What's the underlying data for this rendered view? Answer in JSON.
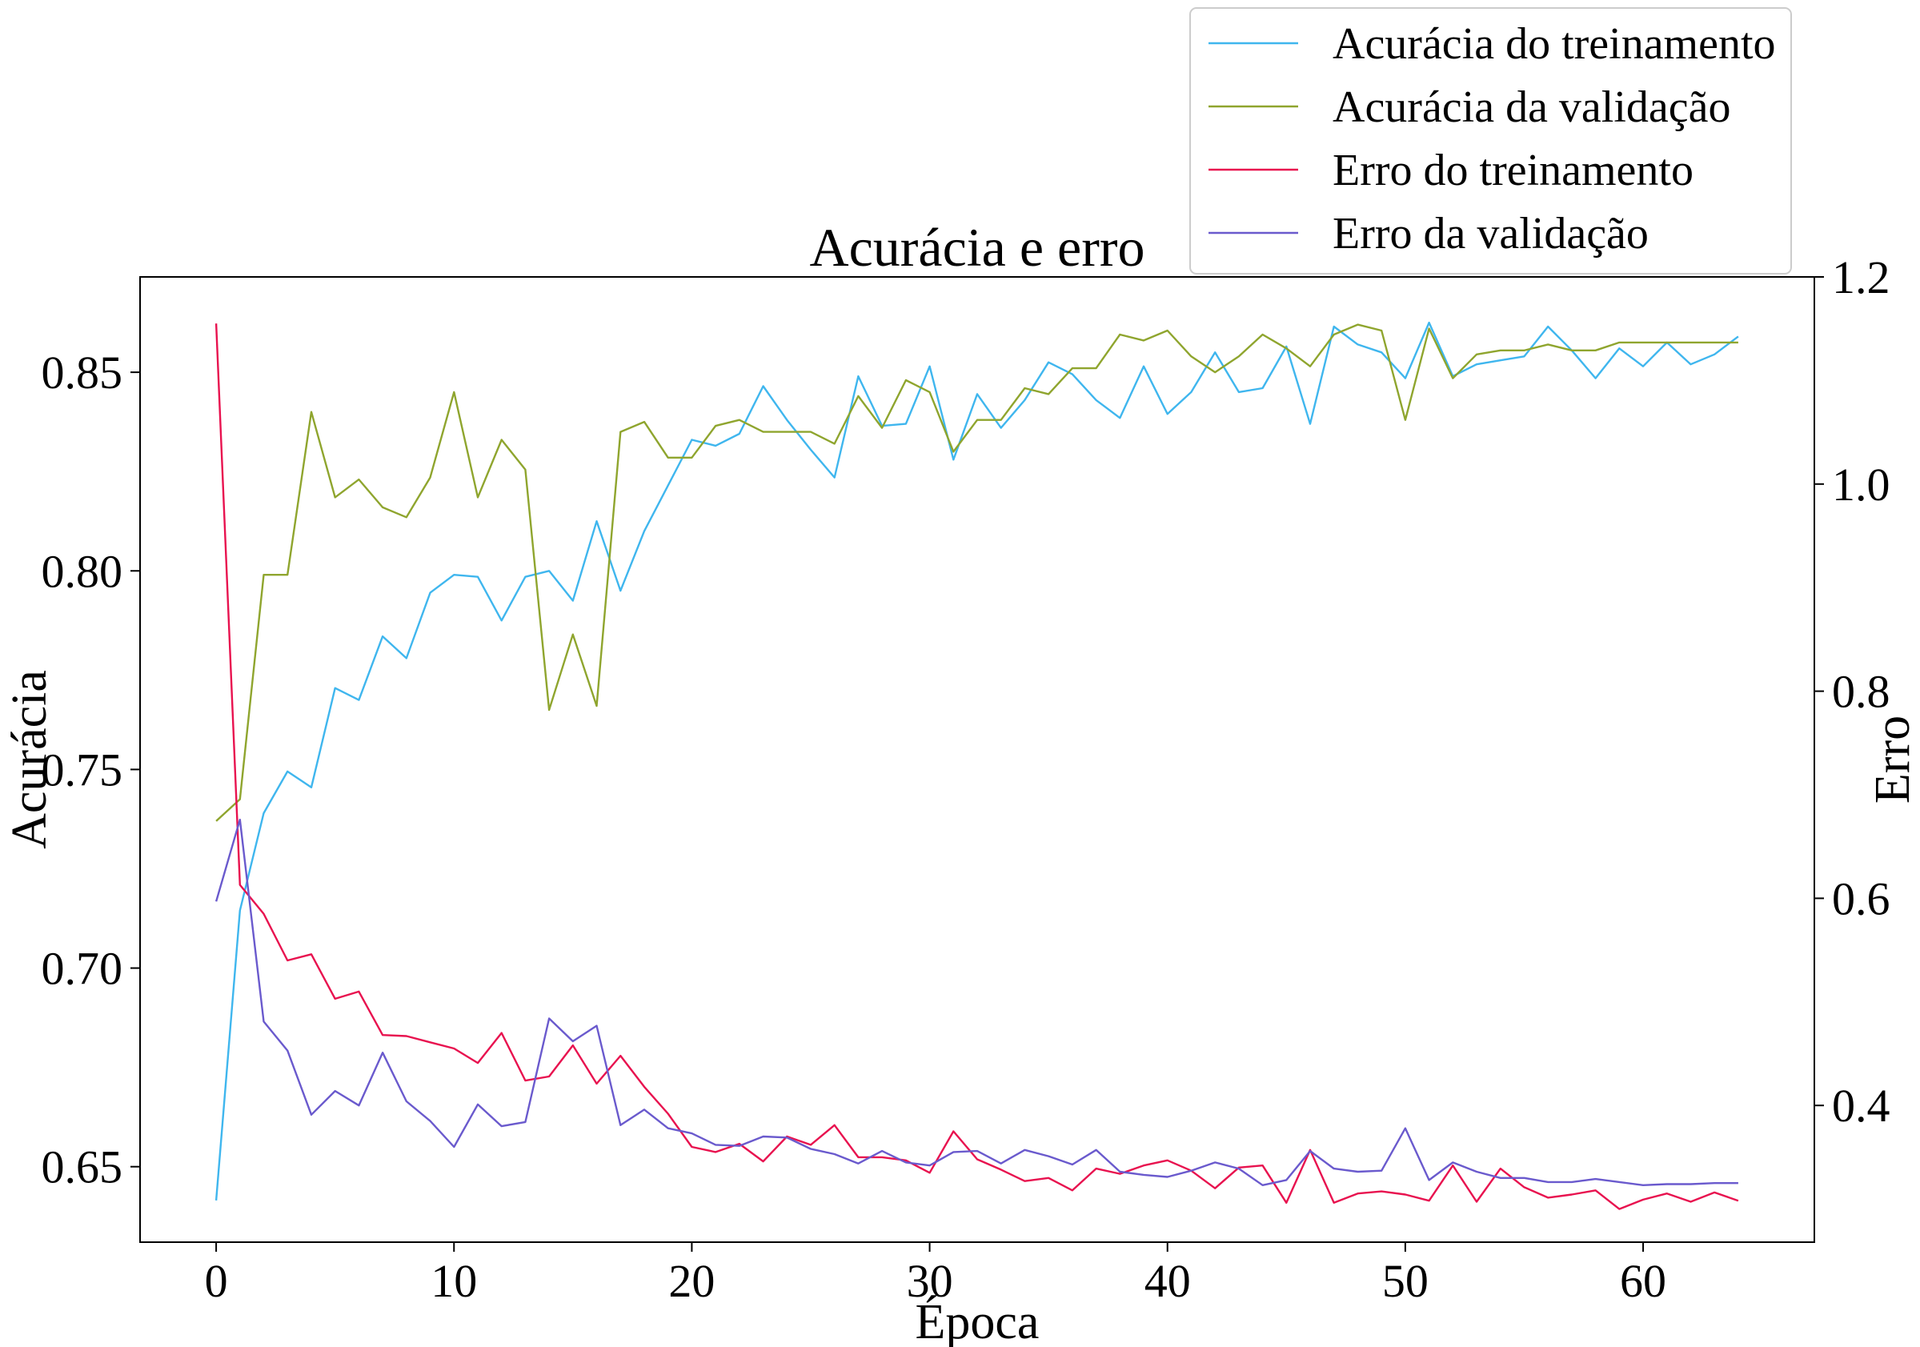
{
  "chart_data": {
    "type": "line",
    "title": "Acurácia e erro",
    "xlabel": "Época",
    "ylabel_left": "Acurácia",
    "ylabel_right": "Erro",
    "xlim": [
      -3.2,
      67.2
    ],
    "ylim_left": [
      0.631,
      0.874
    ],
    "ylim_right": [
      0.268,
      1.2
    ],
    "x_ticks": [
      0,
      10,
      20,
      30,
      40,
      50,
      60
    ],
    "y_left_ticks": [
      0.65,
      0.7,
      0.75,
      0.8,
      0.85
    ],
    "y_right_ticks": [
      0.4,
      0.6,
      0.8,
      1.0,
      1.2
    ],
    "grid": false,
    "legend_position": "top-right, above plot",
    "series": [
      {
        "name": "Acurácia do treinamento",
        "axis": "left",
        "color": "#3fb6ee",
        "values": [
          0.6415,
          0.7145,
          0.739,
          0.7495,
          0.7455,
          0.7705,
          0.7675,
          0.7835,
          0.778,
          0.7945,
          0.799,
          0.7985,
          0.7875,
          0.7985,
          0.8,
          0.7925,
          0.8125,
          0.795,
          0.81,
          0.8215,
          0.833,
          0.8315,
          0.8345,
          0.8465,
          0.838,
          0.8305,
          0.8235,
          0.849,
          0.8365,
          0.837,
          0.8515,
          0.828,
          0.8445,
          0.836,
          0.843,
          0.8525,
          0.8495,
          0.843,
          0.8385,
          0.8515,
          0.8395,
          0.845,
          0.855,
          0.845,
          0.846,
          0.8565,
          0.837,
          0.8615,
          0.857,
          0.855,
          0.8485,
          0.8625,
          0.849,
          0.852,
          0.853,
          0.854,
          0.8615,
          0.8555,
          0.8485,
          0.856,
          0.8515,
          0.8575,
          0.852,
          0.8545,
          0.859
        ]
      },
      {
        "name": "Acurácia da validação",
        "axis": "left",
        "color": "#8fa52e",
        "values": [
          0.737,
          0.7425,
          0.799,
          0.799,
          0.84,
          0.8185,
          0.823,
          0.816,
          0.8135,
          0.8235,
          0.845,
          0.8185,
          0.833,
          0.8255,
          0.765,
          0.784,
          0.766,
          0.835,
          0.8375,
          0.8285,
          0.8285,
          0.8365,
          0.838,
          0.835,
          0.835,
          0.835,
          0.832,
          0.844,
          0.836,
          0.848,
          0.845,
          0.83,
          0.838,
          0.838,
          0.846,
          0.8445,
          0.851,
          0.851,
          0.8595,
          0.858,
          0.8605,
          0.854,
          0.85,
          0.854,
          0.8595,
          0.856,
          0.8515,
          0.8595,
          0.862,
          0.8605,
          0.838,
          0.861,
          0.8485,
          0.8545,
          0.8555,
          0.8555,
          0.857,
          0.8555,
          0.8555,
          0.8575,
          0.8575,
          0.8575,
          0.8575,
          0.8575,
          0.8575
        ]
      },
      {
        "name": "Erro do treinamento",
        "axis": "right",
        "color": "#e8124f",
        "values": [
          1.155,
          0.613,
          0.585,
          0.54,
          0.546,
          0.503,
          0.51,
          0.468,
          0.467,
          0.461,
          0.455,
          0.441,
          0.47,
          0.424,
          0.428,
          0.458,
          0.421,
          0.448,
          0.418,
          0.392,
          0.36,
          0.355,
          0.363,
          0.346,
          0.37,
          0.362,
          0.381,
          0.35,
          0.35,
          0.347,
          0.335,
          0.375,
          0.348,
          0.338,
          0.327,
          0.33,
          0.318,
          0.339,
          0.334,
          0.342,
          0.347,
          0.337,
          0.32,
          0.34,
          0.342,
          0.306,
          0.357,
          0.306,
          0.315,
          0.317,
          0.314,
          0.308,
          0.342,
          0.307,
          0.339,
          0.321,
          0.311,
          0.314,
          0.318,
          0.3,
          0.309,
          0.315,
          0.307,
          0.316,
          0.308
        ]
      },
      {
        "name": "Erro da validação",
        "axis": "right",
        "color": "#6a5acd",
        "values": [
          0.597,
          0.676,
          0.481,
          0.453,
          0.391,
          0.414,
          0.4,
          0.451,
          0.404,
          0.385,
          0.36,
          0.401,
          0.38,
          0.384,
          0.484,
          0.462,
          0.477,
          0.381,
          0.396,
          0.378,
          0.373,
          0.362,
          0.361,
          0.37,
          0.369,
          0.358,
          0.353,
          0.344,
          0.356,
          0.345,
          0.342,
          0.355,
          0.356,
          0.344,
          0.357,
          0.351,
          0.343,
          0.357,
          0.336,
          0.333,
          0.331,
          0.337,
          0.345,
          0.339,
          0.323,
          0.328,
          0.356,
          0.339,
          0.336,
          0.337,
          0.378,
          0.328,
          0.345,
          0.336,
          0.33,
          0.33,
          0.326,
          0.326,
          0.329,
          0.326,
          0.323,
          0.324,
          0.324,
          0.325,
          0.325
        ]
      }
    ]
  }
}
